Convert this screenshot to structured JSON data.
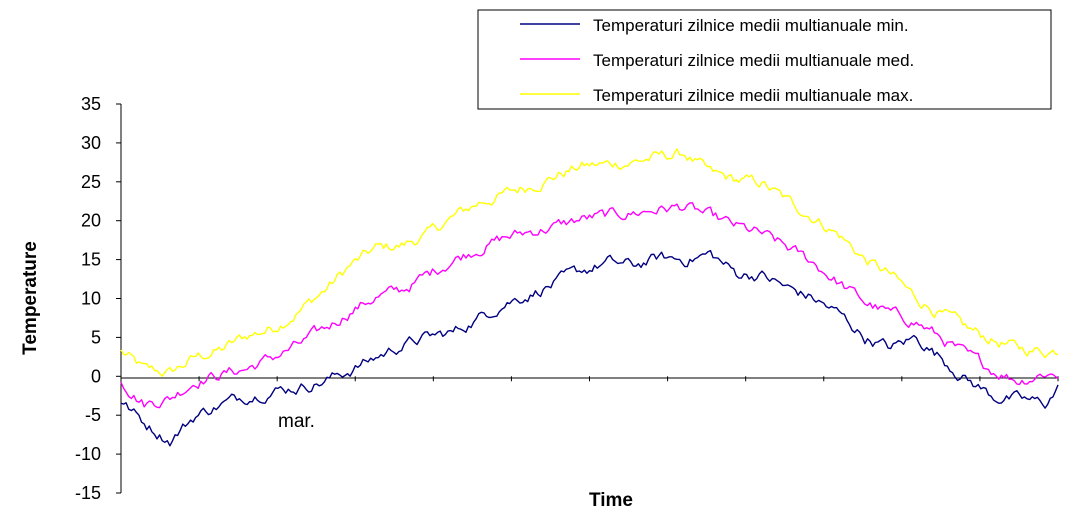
{
  "chart_data": {
    "type": "line",
    "title": "",
    "xlabel": "Time",
    "ylabel": "Temperature",
    "ylim": [
      -15,
      35
    ],
    "yticks": [
      35,
      30,
      25,
      20,
      15,
      10,
      5,
      0,
      -5,
      -10,
      -15
    ],
    "x_annotation": "mar.",
    "grid": false,
    "legend_position": "top-right",
    "x_days": 365,
    "x_tick_count": 12,
    "series": [
      {
        "name": "Temperaturi zilnice medii multianuale min.",
        "color": "#000080",
        "x": [
          1,
          10,
          20,
          30,
          40,
          50,
          60,
          70,
          80,
          90,
          100,
          110,
          120,
          130,
          140,
          150,
          160,
          170,
          180,
          190,
          200,
          210,
          220,
          230,
          240,
          250,
          260,
          270,
          280,
          290,
          300,
          310,
          320,
          330,
          340,
          350,
          360,
          365
        ],
        "y": [
          -3.2,
          -6,
          -8.2,
          -5,
          -3.6,
          -2.5,
          -1.8,
          -1.4,
          -0.6,
          0.8,
          2.4,
          4,
          5,
          5.6,
          7.5,
          9.5,
          10.6,
          12,
          13.5,
          14.6,
          14.2,
          15.2,
          15,
          15.7,
          13.2,
          13,
          11.3,
          10,
          8,
          5,
          3.6,
          5,
          2.3,
          -0.5,
          -2.6,
          -3,
          -3.5,
          -1.6
        ]
      },
      {
        "name": "Temperaturi zilnice medii multianuale med.",
        "color": "#ff00ff",
        "x": [
          1,
          10,
          20,
          30,
          40,
          50,
          60,
          70,
          80,
          90,
          100,
          110,
          120,
          130,
          140,
          150,
          160,
          170,
          180,
          190,
          200,
          210,
          220,
          230,
          240,
          250,
          260,
          270,
          280,
          290,
          300,
          310,
          320,
          330,
          340,
          350,
          360,
          365
        ],
        "y": [
          -0.5,
          -3.5,
          -2.8,
          -0.5,
          0.3,
          1,
          2.4,
          4,
          6,
          8.4,
          10.2,
          11,
          13,
          15,
          16.5,
          17.8,
          18.6,
          19.3,
          20.2,
          20.6,
          21,
          21.5,
          21.8,
          20.5,
          19.2,
          18.2,
          16.5,
          14.6,
          12,
          9.5,
          8,
          7,
          4.8,
          2.5,
          0.8,
          -0.5,
          0.5,
          0.2
        ]
      },
      {
        "name": "Temperaturi zilnice medii multianuale max.",
        "color": "#ffff00",
        "x": [
          1,
          10,
          20,
          30,
          40,
          50,
          60,
          70,
          80,
          90,
          100,
          110,
          120,
          130,
          140,
          150,
          160,
          170,
          180,
          190,
          200,
          210,
          220,
          230,
          240,
          250,
          260,
          270,
          280,
          290,
          300,
          310,
          320,
          330,
          340,
          350,
          360,
          365
        ],
        "y": [
          3.2,
          0.8,
          0.4,
          2.4,
          3.4,
          5.2,
          6.2,
          8.4,
          11,
          14.2,
          16.4,
          16.8,
          18.2,
          20.4,
          22.3,
          23.4,
          24.5,
          25.8,
          27,
          27.2,
          27.6,
          28.2,
          28.6,
          26,
          25.2,
          24.8,
          22.5,
          20.5,
          18.2,
          15,
          13,
          10,
          8,
          6,
          4.6,
          3.5,
          3.2,
          3.4
        ]
      }
    ]
  }
}
